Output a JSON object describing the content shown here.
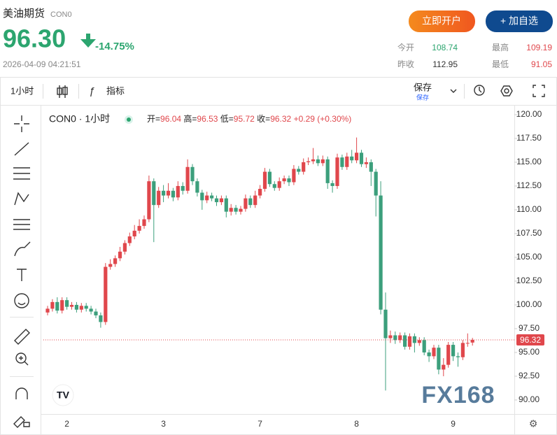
{
  "header": {
    "title": "美油期货",
    "code": "CON0",
    "price": "96.30",
    "change": "-14.75%",
    "time": "2026-04-09 04:21:51",
    "buttons": [
      "立即开户",
      "+ 加自选"
    ],
    "stats": [
      {
        "label": "今开",
        "value": "108.74"
      },
      {
        "label": "最高",
        "value": "109.19"
      },
      {
        "label": "昨收",
        "value": "112.95"
      },
      {
        "label": "最低",
        "value": "91.05"
      }
    ]
  },
  "toolbar": {
    "interval": "1小时",
    "indicators": "指标",
    "save": "保存",
    "save_sub": "保存"
  },
  "legend": {
    "symbol": "CON0 · 1小时",
    "labels": [
      "开=",
      "高=",
      "低=",
      "收="
    ],
    "change": "+0.29 (+0.30%)"
  },
  "watermark": "FX168",
  "chart_data": {
    "type": "candlestick",
    "up_color": "#e0474c",
    "down_color": "#3c9f7c",
    "categories": [
      null,
      null,
      null,
      null,
      "2",
      null,
      null,
      null,
      null,
      null,
      null,
      null,
      null,
      null,
      null,
      null,
      null,
      null,
      null,
      null,
      null,
      null,
      null,
      null,
      "3",
      null,
      null,
      null,
      null,
      null,
      null,
      null,
      null,
      null,
      null,
      null,
      null,
      null,
      null,
      null,
      null,
      null,
      null,
      null,
      "7",
      null,
      null,
      null,
      null,
      null,
      null,
      null,
      null,
      null,
      null,
      null,
      null,
      null,
      null,
      null,
      null,
      null,
      null,
      null,
      "8",
      null,
      null,
      null,
      null,
      null,
      null,
      null,
      null,
      null,
      null,
      null,
      null,
      null,
      null,
      null,
      null,
      null,
      null,
      null,
      "9",
      null,
      null,
      null,
      null
    ],
    "open": [
      99.2,
      99.6,
      100.3,
      99.4,
      100.5,
      99.8,
      100.0,
      99.5,
      99.9,
      99.6,
      99.3,
      98.9,
      98.2,
      104.0,
      104.3,
      104.9,
      105.6,
      106.5,
      107.2,
      107.8,
      108.3,
      109.0,
      113.0,
      110.5,
      112.0,
      111.5,
      112.0,
      111.3,
      112.5,
      112.0,
      114.5,
      113.0,
      111.8,
      111.0,
      111.5,
      111.2,
      110.8,
      111.2,
      109.8,
      110.2,
      109.8,
      110.1,
      111.2,
      110.5,
      111.5,
      112.2,
      114.0,
      112.7,
      112.3,
      113.0,
      113.3,
      112.9,
      114.3,
      114.0,
      115.0,
      115.1,
      115.3,
      114.9,
      115.3,
      112.8,
      112.5,
      115.5,
      114.5,
      115.6,
      115.2,
      116.0,
      114.8,
      115.0,
      114.0,
      111.5,
      99.5,
      96.5,
      96.8,
      96.3,
      96.8,
      95.6,
      96.7,
      96.0,
      96.3,
      95.0,
      94.6,
      95.5,
      93.2,
      93.7,
      95.8,
      94.6,
      94.5,
      96.0,
      96.04
    ],
    "high": [
      99.9,
      100.6,
      100.8,
      100.8,
      100.8,
      100.3,
      100.3,
      100.2,
      100.2,
      99.9,
      99.6,
      99.2,
      104.4,
      104.8,
      105.2,
      106.1,
      106.8,
      107.6,
      108.4,
      109.0,
      109.4,
      113.6,
      113.3,
      112.4,
      112.6,
      112.8,
      112.3,
      113.0,
      112.9,
      115.3,
      114.8,
      113.3,
      112.1,
      111.9,
      111.8,
      111.5,
      111.5,
      111.5,
      110.6,
      110.5,
      110.4,
      111.6,
      111.5,
      112.0,
      112.6,
      114.4,
      114.3,
      113.0,
      113.4,
      113.6,
      113.6,
      114.7,
      114.6,
      115.4,
      115.5,
      116.5,
      115.7,
      115.7,
      115.6,
      113.1,
      115.9,
      115.8,
      116.0,
      116.3,
      117.6,
      116.3,
      115.5,
      115.3,
      114.3,
      113.0,
      101.3,
      97.3,
      97.2,
      97.1,
      97.1,
      97.0,
      97.0,
      96.6,
      96.6,
      95.3,
      95.8,
      95.8,
      94.4,
      96.1,
      96.1,
      95.0,
      96.3,
      97.0,
      96.53
    ],
    "low": [
      98.9,
      99.3,
      99.1,
      99.1,
      99.5,
      99.5,
      99.2,
      99.2,
      99.3,
      99.0,
      98.6,
      97.6,
      97.9,
      103.7,
      104.0,
      104.6,
      105.3,
      106.2,
      106.9,
      107.5,
      108.0,
      108.7,
      106.6,
      110.2,
      110.8,
      111.2,
      110.9,
      111.0,
      111.6,
      111.7,
      112.6,
      111.4,
      110.0,
      110.7,
      110.9,
      110.4,
      110.5,
      109.2,
      109.4,
      109.5,
      109.5,
      109.8,
      110.2,
      110.2,
      111.2,
      111.9,
      112.4,
      112.0,
      112.0,
      112.7,
      112.5,
      112.6,
      113.7,
      113.7,
      114.7,
      114.8,
      114.6,
      114.6,
      112.2,
      111.8,
      112.2,
      114.2,
      114.2,
      114.9,
      114.9,
      114.5,
      114.4,
      112.5,
      109.3,
      99.0,
      91.0,
      96.0,
      95.9,
      96.0,
      95.3,
      95.3,
      95.0,
      95.7,
      94.7,
      94.0,
      94.3,
      92.7,
      92.5,
      93.4,
      94.1,
      93.5,
      94.2,
      95.6,
      95.72
    ],
    "close": [
      99.6,
      100.3,
      99.4,
      100.5,
      99.8,
      100.0,
      99.5,
      99.9,
      99.6,
      99.3,
      98.9,
      98.2,
      104.0,
      104.3,
      104.9,
      105.6,
      106.5,
      107.2,
      107.8,
      108.3,
      109.0,
      113.0,
      110.5,
      112.0,
      111.5,
      112.0,
      111.3,
      112.5,
      112.0,
      114.5,
      113.0,
      111.8,
      111.0,
      111.5,
      111.2,
      110.8,
      111.2,
      109.8,
      110.2,
      109.8,
      110.1,
      111.2,
      110.5,
      111.5,
      112.2,
      114.0,
      112.7,
      112.3,
      113.0,
      113.3,
      112.9,
      114.3,
      114.0,
      115.0,
      115.1,
      115.3,
      114.9,
      115.3,
      112.8,
      112.5,
      115.5,
      114.5,
      115.6,
      115.2,
      116.0,
      114.8,
      115.0,
      114.0,
      111.5,
      99.5,
      96.5,
      96.8,
      96.3,
      96.8,
      95.6,
      96.7,
      96.0,
      96.3,
      95.0,
      94.6,
      95.5,
      93.2,
      93.7,
      95.8,
      94.6,
      94.5,
      96.0,
      96.0,
      96.32
    ],
    "ylim": [
      88.82,
      120.88
    ],
    "yticks": [
      {
        "value": 90,
        "label": "90.00"
      },
      {
        "value": 92.5,
        "label": "92.50"
      },
      {
        "value": 95,
        "label": "95.00"
      },
      {
        "value": 97.5,
        "label": "97.50"
      },
      {
        "value": 100,
        "label": "100.00"
      },
      {
        "value": 102.5,
        "label": "102.50"
      },
      {
        "value": 105,
        "label": "105.00"
      },
      {
        "value": 107.5,
        "label": "107.50"
      },
      {
        "value": 110,
        "label": "110.00"
      },
      {
        "value": 112.5,
        "label": "112.50"
      },
      {
        "value": 115,
        "label": "115.00"
      },
      {
        "value": 117.5,
        "label": "117.50"
      },
      {
        "value": 120,
        "label": "120.00"
      }
    ],
    "grid": false
  }
}
